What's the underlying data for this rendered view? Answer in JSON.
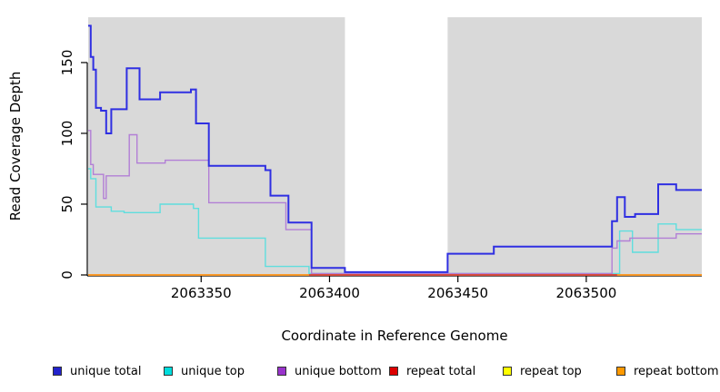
{
  "figure": {
    "x_label": "Coordinate in Reference Genome",
    "y_label": "Read Coverage Depth"
  },
  "chart_data": {
    "type": "line",
    "subtype": "step",
    "title": "",
    "xlabel": "Coordinate in Reference Genome",
    "ylabel": "Read Coverage Depth",
    "xlim": [
      2063306,
      2063545
    ],
    "ylim": [
      0,
      182
    ],
    "x_ticks": [
      2063350,
      2063400,
      2063450,
      2063500
    ],
    "y_ticks": [
      0,
      50,
      100,
      150
    ],
    "grid": false,
    "legend_position": "bottom",
    "plot_background": "#d9d9d9",
    "highlight_bands": [
      {
        "from": 2063406,
        "to": 2063446,
        "color": "#ffffff"
      }
    ],
    "series": [
      {
        "name": "unique total",
        "color": "#2f2fe2",
        "width": 2,
        "points": [
          [
            2063306,
            176
          ],
          [
            2063307,
            154
          ],
          [
            2063308,
            145
          ],
          [
            2063309,
            118
          ],
          [
            2063311,
            116
          ],
          [
            2063313,
            100
          ],
          [
            2063315,
            117
          ],
          [
            2063321,
            146
          ],
          [
            2063326,
            124
          ],
          [
            2063334,
            129
          ],
          [
            2063346,
            131
          ],
          [
            2063348,
            107
          ],
          [
            2063353,
            77
          ],
          [
            2063375,
            74
          ],
          [
            2063377,
            56
          ],
          [
            2063384,
            37
          ],
          [
            2063393,
            5
          ],
          [
            2063406,
            2
          ],
          [
            2063446,
            15
          ],
          [
            2063464,
            20
          ],
          [
            2063510,
            38
          ],
          [
            2063512,
            55
          ],
          [
            2063515,
            41
          ],
          [
            2063519,
            43
          ],
          [
            2063528,
            64
          ],
          [
            2063535,
            60
          ],
          [
            2063545,
            60
          ]
        ]
      },
      {
        "name": "unique top",
        "color": "#5fdede",
        "width": 1.4,
        "points": [
          [
            2063306,
            75
          ],
          [
            2063307,
            68
          ],
          [
            2063309,
            48
          ],
          [
            2063315,
            45
          ],
          [
            2063320,
            44
          ],
          [
            2063334,
            50
          ],
          [
            2063347,
            47
          ],
          [
            2063349,
            26
          ],
          [
            2063375,
            6
          ],
          [
            2063392,
            1
          ],
          [
            2063513,
            31
          ],
          [
            2063518,
            16
          ],
          [
            2063528,
            36
          ],
          [
            2063535,
            32
          ],
          [
            2063545,
            32
          ]
        ]
      },
      {
        "name": "unique bottom",
        "color": "#b27fd6",
        "width": 1.4,
        "points": [
          [
            2063306,
            102
          ],
          [
            2063307,
            78
          ],
          [
            2063308,
            71
          ],
          [
            2063312,
            54
          ],
          [
            2063313,
            70
          ],
          [
            2063322,
            99
          ],
          [
            2063325,
            79
          ],
          [
            2063336,
            81
          ],
          [
            2063353,
            51
          ],
          [
            2063383,
            32
          ],
          [
            2063393,
            1
          ],
          [
            2063510,
            19
          ],
          [
            2063512,
            24
          ],
          [
            2063517,
            26
          ],
          [
            2063535,
            29
          ],
          [
            2063545,
            29
          ]
        ]
      },
      {
        "name": "repeat total",
        "color": "#cc3344",
        "width": 1.6,
        "points": [
          [
            2063306,
            0
          ],
          [
            2063545,
            0
          ]
        ]
      },
      {
        "name": "repeat top",
        "color": "#f2f200",
        "width": 1.4,
        "points": [
          [
            2063306,
            0
          ],
          [
            2063545,
            0
          ]
        ]
      },
      {
        "name": "repeat bottom",
        "color": "#ff9d26",
        "width": 1.8,
        "points": [
          [
            2063306,
            0
          ],
          [
            2063545,
            0
          ]
        ]
      }
    ],
    "zero_line_visibility": {
      "repeat_total_visible_range": [
        2063392,
        2063512
      ],
      "repeat_bottom_visible_ranges": [
        [
          2063306,
          2063392
        ],
        [
          2063512,
          2063545
        ]
      ]
    }
  },
  "legend": {
    "items": [
      {
        "label": "unique total",
        "swatch_color": "#2222cc"
      },
      {
        "label": "unique top",
        "swatch_color": "#00dddd"
      },
      {
        "label": "unique bottom",
        "swatch_color": "#9933cc"
      },
      {
        "label": "repeat total",
        "swatch_color": "#dd0000"
      },
      {
        "label": "repeat top",
        "swatch_color": "#ffff00"
      },
      {
        "label": "repeat bottom",
        "swatch_color": "#ff9900"
      }
    ]
  }
}
